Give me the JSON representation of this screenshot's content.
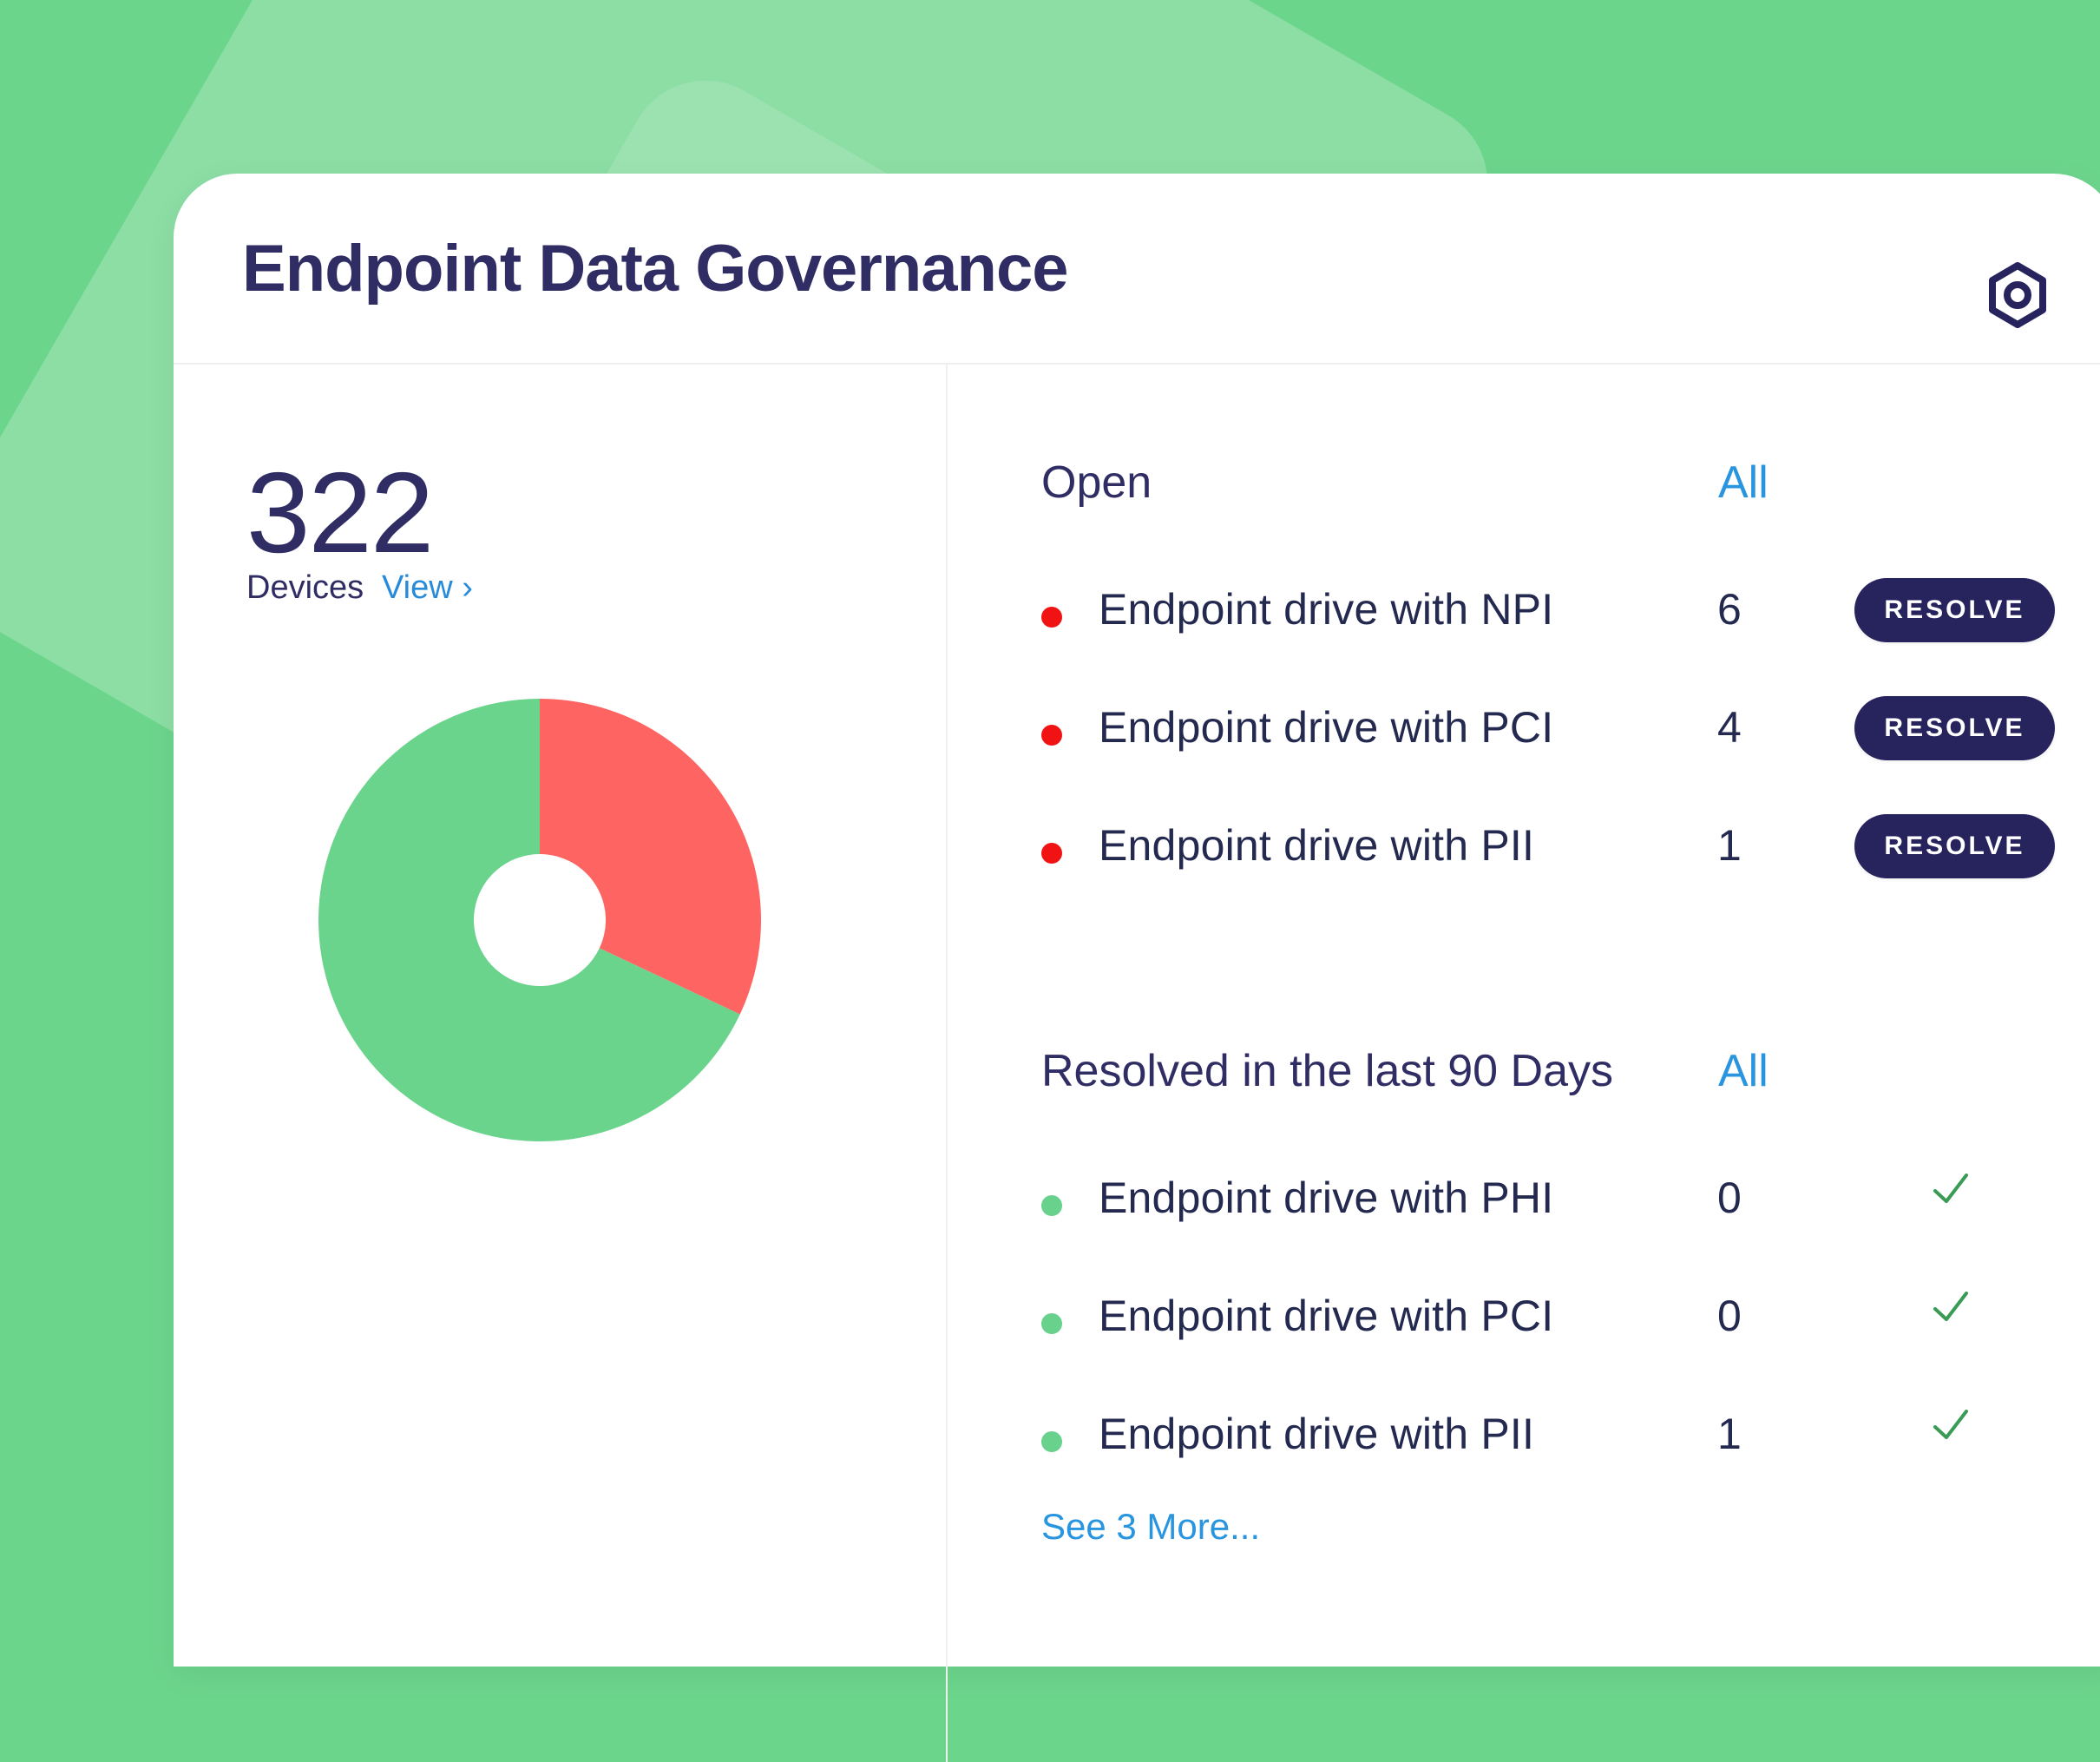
{
  "title": "Endpoint Data Governance",
  "summary": {
    "count": "322",
    "label": "Devices",
    "view_label": "View ›"
  },
  "open_section": {
    "heading": "Open",
    "all_label": "All",
    "items": [
      {
        "label": "Endpoint drive with NPI",
        "count": "6",
        "action": "RESOLVE"
      },
      {
        "label": "Endpoint drive with PCI",
        "count": "4",
        "action": "RESOLVE"
      },
      {
        "label": "Endpoint drive with PII",
        "count": "1",
        "action": "RESOLVE"
      }
    ]
  },
  "resolved_section": {
    "heading": "Resolved in the last 90 Days",
    "all_label": "All",
    "items": [
      {
        "label": "Endpoint drive with PHI",
        "count": "0"
      },
      {
        "label": "Endpoint drive with PCI",
        "count": "0"
      },
      {
        "label": "Endpoint drive with PII",
        "count": "1"
      }
    ],
    "see_more": "See 3 More..."
  },
  "icons": {
    "settings": "gear-icon",
    "resolved": "check-icon",
    "open_status": "red-dot",
    "resolved_status": "green-dot"
  },
  "colors": {
    "brand_green": "#6cd58c",
    "danger": "#fe6462",
    "accent": "#2a95df",
    "navy": "#26235d"
  },
  "chart_data": {
    "type": "pie",
    "series": [
      {
        "values": [
          0.32,
          0.68
        ]
      }
    ],
    "colors": [
      "#fe6462",
      "#6ad48c"
    ]
  }
}
